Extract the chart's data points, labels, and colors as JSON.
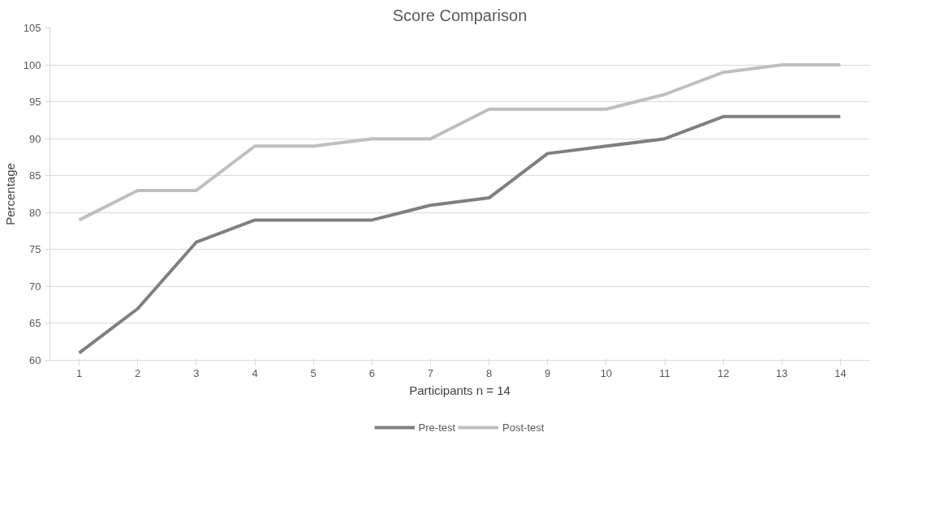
{
  "chart_data": {
    "type": "line",
    "title": "Score Comparison",
    "xlabel": "Participants n = 14",
    "ylabel": "Percentage",
    "categories": [
      "1",
      "2",
      "3",
      "4",
      "5",
      "6",
      "7",
      "8",
      "9",
      "10",
      "11",
      "12",
      "13",
      "14"
    ],
    "series": [
      {
        "name": "Pre-test",
        "color": "#7f7f7f",
        "values": [
          61,
          67,
          76,
          79,
          79,
          79,
          81,
          82,
          88,
          89,
          90,
          93,
          93,
          93
        ]
      },
      {
        "name": "Post-test",
        "color": "#bfbfbf",
        "values": [
          79,
          83,
          83,
          89,
          89,
          90,
          90,
          94,
          94,
          94,
          96,
          99,
          100,
          100
        ]
      }
    ],
    "ylim": [
      60,
      105
    ],
    "yticks": [
      60,
      65,
      70,
      75,
      80,
      85,
      90,
      95,
      100,
      105
    ],
    "grid": "y",
    "legend": "bottom",
    "marker": "none",
    "line_style": "solid"
  }
}
